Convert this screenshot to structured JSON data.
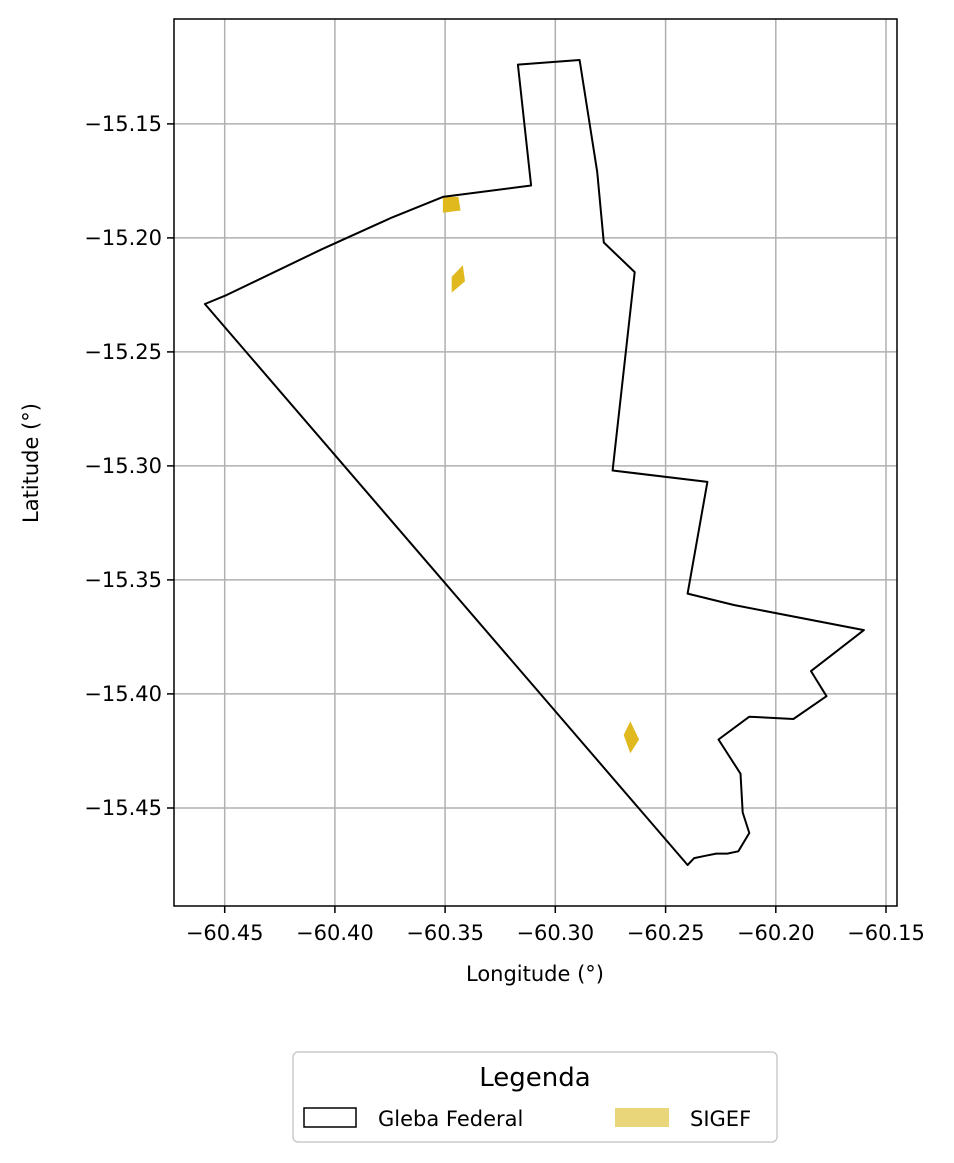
{
  "chart_data": {
    "type": "map",
    "xlabel": "Longitude (°)",
    "ylabel": "Latitude (°)",
    "xlim": [
      -60.473,
      -60.145
    ],
    "ylim": [
      -15.493,
      -15.104
    ],
    "x_ticks": [
      -60.45,
      -60.4,
      -60.35,
      -60.3,
      -60.25,
      -60.2,
      -60.15
    ],
    "x_tick_labels": [
      "−60.45",
      "−60.40",
      "−60.35",
      "−60.30",
      "−60.25",
      "−60.20",
      "−60.15"
    ],
    "y_ticks": [
      -15.15,
      -15.2,
      -15.25,
      -15.3,
      -15.35,
      -15.4,
      -15.45
    ],
    "y_tick_labels": [
      "−15.15",
      "−15.20",
      "−15.25",
      "−15.30",
      "−15.35",
      "−15.40",
      "−15.45"
    ],
    "grid": true,
    "legend": {
      "title": "Legenda",
      "placement": "bottom-center",
      "entries": [
        {
          "label": "Gleba Federal",
          "style": "outline",
          "color": "#000000"
        },
        {
          "label": "SIGEF",
          "style": "fill",
          "color": "#e9d57a"
        }
      ]
    },
    "series": [
      {
        "name": "Gleba Federal",
        "kind": "outline",
        "color": "#000000",
        "polygons": [
          [
            [
              -60.459,
              -15.229
            ],
            [
              -60.449,
              -15.225
            ],
            [
              -60.406,
              -15.205
            ],
            [
              -60.374,
              -15.191
            ],
            [
              -60.351,
              -15.182
            ],
            [
              -60.311,
              -15.177
            ],
            [
              -60.317,
              -15.124
            ],
            [
              -60.289,
              -15.122
            ],
            [
              -60.281,
              -15.171
            ],
            [
              -60.278,
              -15.202
            ],
            [
              -60.264,
              -15.215
            ],
            [
              -60.274,
              -15.302
            ],
            [
              -60.231,
              -15.307
            ],
            [
              -60.24,
              -15.356
            ],
            [
              -60.219,
              -15.361
            ],
            [
              -60.16,
              -15.372
            ],
            [
              -60.184,
              -15.39
            ],
            [
              -60.177,
              -15.401
            ],
            [
              -60.192,
              -15.411
            ],
            [
              -60.212,
              -15.41
            ],
            [
              -60.226,
              -15.42
            ],
            [
              -60.216,
              -15.435
            ],
            [
              -60.215,
              -15.452
            ],
            [
              -60.212,
              -15.461
            ],
            [
              -60.217,
              -15.469
            ],
            [
              -60.222,
              -15.47
            ],
            [
              -60.227,
              -15.47
            ],
            [
              -60.232,
              -15.471
            ],
            [
              -60.237,
              -15.472
            ],
            [
              -60.24,
              -15.475
            ],
            [
              -60.459,
              -15.229
            ]
          ]
        ]
      },
      {
        "name": "SIGEF",
        "kind": "fill",
        "color": "#e0b91f",
        "polygons": [
          [
            [
              -60.351,
              -15.182
            ],
            [
              -60.344,
              -15.182
            ],
            [
              -60.343,
              -15.188
            ],
            [
              -60.351,
              -15.189
            ]
          ],
          [
            [
              -60.347,
              -15.217
            ],
            [
              -60.342,
              -15.212
            ],
            [
              -60.341,
              -15.219
            ],
            [
              -60.347,
              -15.224
            ]
          ],
          [
            [
              -60.269,
              -15.418
            ],
            [
              -60.266,
              -15.412
            ],
            [
              -60.262,
              -15.42
            ],
            [
              -60.266,
              -15.426
            ]
          ]
        ]
      }
    ]
  }
}
